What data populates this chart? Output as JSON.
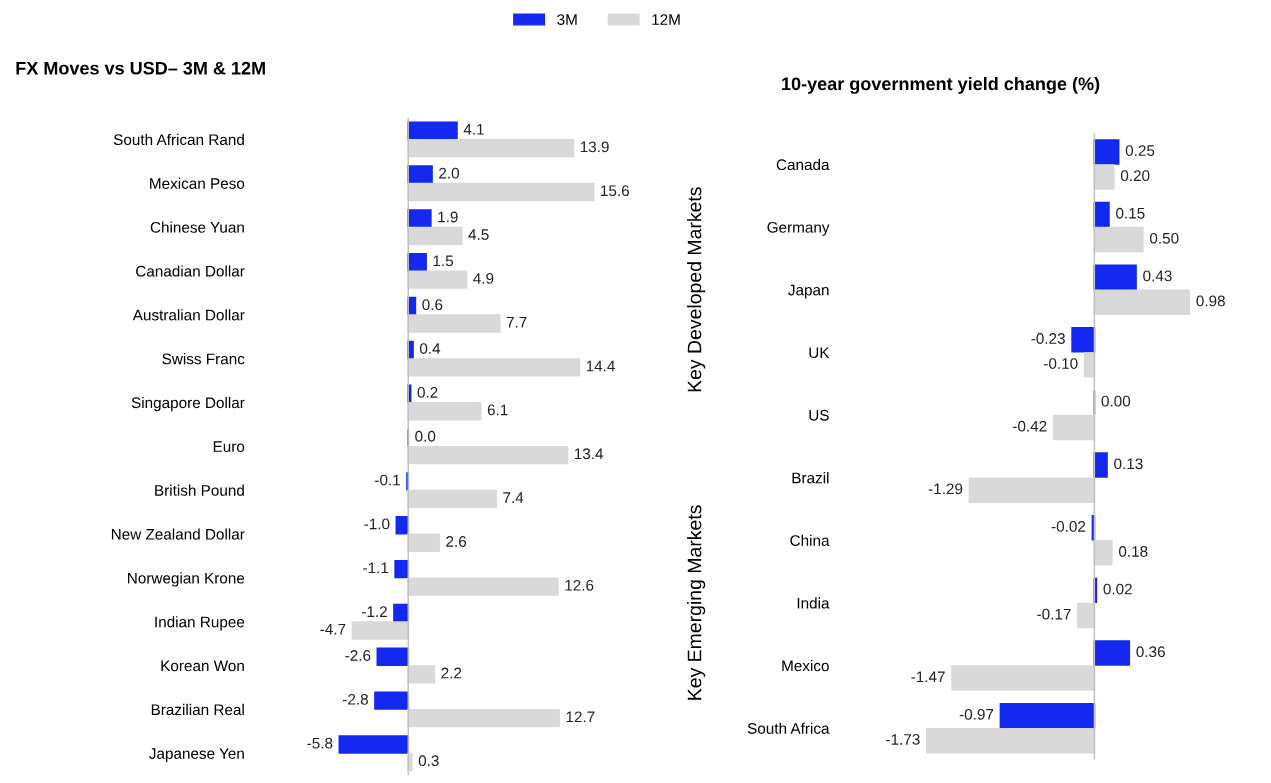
{
  "chart_data": [
    {
      "type": "bar",
      "orientation": "horizontal",
      "title": "FX Moves vs USD– 3M & 12M",
      "legend": "top",
      "data_labels": true,
      "categories": [
        "South African Rand",
        "Mexican Peso",
        "Chinese Yuan",
        "Canadian Dollar",
        "Australian Dollar",
        "Swiss Franc",
        "Singapore Dollar",
        "Euro",
        "British Pound",
        "New Zealand Dollar",
        "Norwegian Krone",
        "Indian Rupee",
        "Korean Won",
        "Brazilian Real",
        "Japanese Yen"
      ],
      "series": [
        {
          "name": "3M",
          "color": "#1428f0",
          "values": [
            4.1,
            2.0,
            1.9,
            1.5,
            0.6,
            0.4,
            0.2,
            0.0,
            -0.1,
            -1.0,
            -1.1,
            -1.2,
            -2.6,
            -2.8,
            -5.8
          ],
          "value_labels": [
            "4.1",
            "2.0",
            "1.9",
            "1.5",
            "0.6",
            "0.4",
            "0.2",
            "0.0",
            "-0.1",
            "-1.0",
            "-1.1",
            "-1.2",
            "-2.6",
            "-2.8",
            "-5.8"
          ]
        },
        {
          "name": "12M",
          "color": "#d9d9d9",
          "values": [
            13.9,
            15.6,
            4.5,
            4.9,
            7.7,
            14.4,
            6.1,
            13.4,
            7.4,
            2.6,
            12.6,
            -4.7,
            2.2,
            12.7,
            0.3
          ],
          "value_labels": [
            "13.9",
            "15.6",
            "4.5",
            "4.9",
            "7.7",
            "14.4",
            "6.1",
            "13.4",
            "7.4",
            "2.6",
            "12.6",
            "-4.7",
            "2.2",
            "12.7",
            "0.3"
          ]
        }
      ]
    },
    {
      "type": "bar",
      "orientation": "horizontal",
      "title": "10-year government yield change (%)",
      "data_labels": true,
      "annotations": [
        "Key Developed Markets",
        "Key Emerging Markets"
      ],
      "categories": [
        "Canada",
        "Germany",
        "Japan",
        "UK",
        "US",
        "Brazil",
        "China",
        "India",
        "Mexico",
        "South Africa"
      ],
      "series": [
        {
          "color": "#1428f0",
          "values": [
            0.25,
            0.15,
            0.43,
            -0.23,
            0.0,
            0.13,
            -0.02,
            0.02,
            0.36,
            -0.97
          ],
          "value_labels": [
            "0.25",
            "0.15",
            "0.43",
            "-0.23",
            "0.00",
            "0.13",
            "-0.02",
            "0.02",
            "0.36",
            "-0.97"
          ]
        },
        {
          "color": "#d9d9d9",
          "values": [
            0.2,
            0.5,
            0.98,
            -0.1,
            -0.42,
            -1.29,
            0.18,
            -0.17,
            -1.47,
            -1.73
          ],
          "value_labels": [
            "0.20",
            "0.50",
            "0.98",
            "-0.10",
            "-0.42",
            "-1.29",
            "0.18",
            "-0.17",
            "-1.47",
            "-1.73"
          ]
        }
      ]
    }
  ]
}
